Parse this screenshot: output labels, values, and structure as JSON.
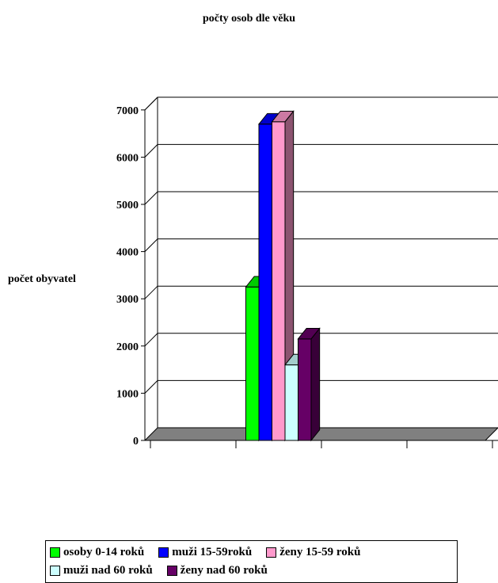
{
  "chart_data": {
    "type": "bar",
    "title": "počty osob dle věku",
    "ylabel": "počet obyvatel",
    "xlabel": "",
    "categories": [
      ""
    ],
    "ylim": [
      0,
      7000
    ],
    "yticks": [
      0,
      1000,
      2000,
      3000,
      4000,
      5000,
      6000,
      7000
    ],
    "three_d": true,
    "grid": true,
    "legend_position": "bottom",
    "series": [
      {
        "name": "osoby 0-14 roků",
        "color": "#00ff00",
        "values": [
          3250
        ]
      },
      {
        "name": "muži 15-59roků",
        "color": "#0000ff",
        "values": [
          6700
        ]
      },
      {
        "name": "ženy 15-59 roků",
        "color": "#ff99cc",
        "values": [
          6750
        ]
      },
      {
        "name": "muži nad 60 roků",
        "color": "#ccffff",
        "values": [
          1600
        ]
      },
      {
        "name": "ženy nad 60 roků",
        "color": "#660066",
        "values": [
          2150
        ]
      }
    ]
  },
  "legend_rows": [
    [
      0,
      1,
      2
    ],
    [
      3,
      4
    ]
  ]
}
